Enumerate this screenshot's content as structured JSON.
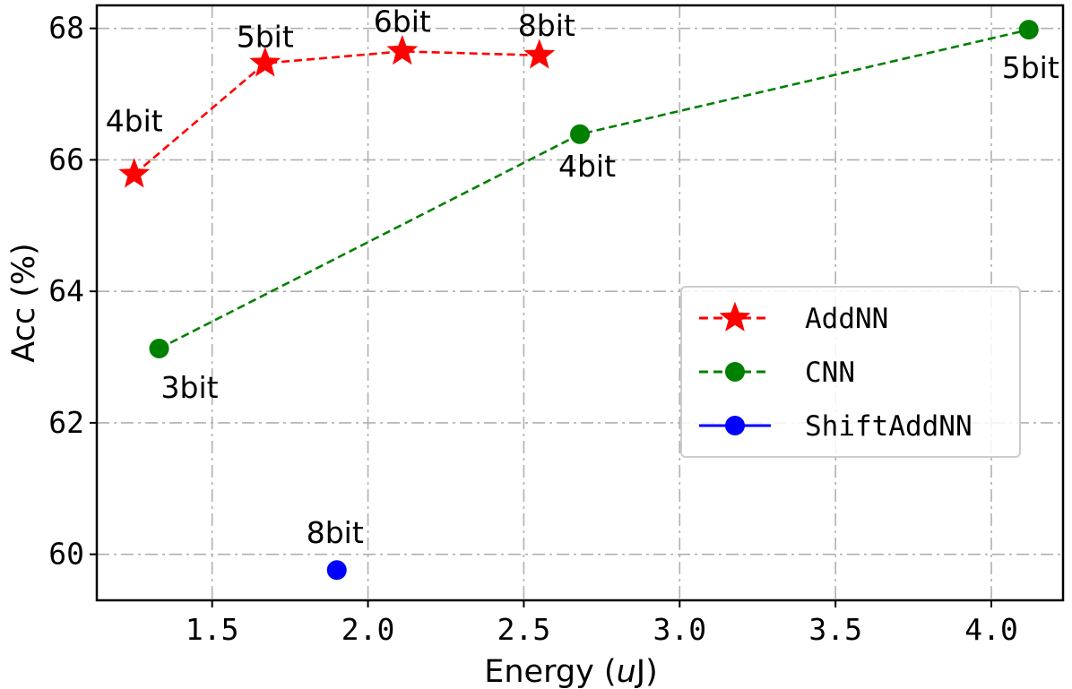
{
  "chart_data": {
    "type": "line",
    "title": "",
    "xlabel_prefix": "Energy (",
    "xlabel_unit": "u",
    "xlabel_suffix": "J)",
    "ylabel": "Acc (%)",
    "xlim": [
      1.13,
      4.23
    ],
    "ylim": [
      59.3,
      68.35
    ],
    "xticks": [
      1.5,
      2.0,
      2.5,
      3.0,
      3.5,
      4.0
    ],
    "xtick_labels": [
      "1.5",
      "2.0",
      "2.5",
      "3.0",
      "3.5",
      "4.0"
    ],
    "yticks": [
      60,
      62,
      64,
      66,
      68
    ],
    "ytick_labels": [
      "60",
      "62",
      "64",
      "66",
      "68"
    ],
    "grid": true,
    "legend_position": "center-right",
    "series": [
      {
        "name": "AddNN",
        "color": "#ff0000",
        "marker": "star",
        "linestyle": "dashed",
        "points": [
          {
            "x": 1.25,
            "y": 65.78,
            "label": "4bit"
          },
          {
            "x": 1.67,
            "y": 67.47,
            "label": "5bit"
          },
          {
            "x": 2.11,
            "y": 67.65,
            "label": "6bit"
          },
          {
            "x": 2.55,
            "y": 67.59,
            "label": "8bit"
          }
        ]
      },
      {
        "name": "CNN",
        "color": "#008000",
        "marker": "circle",
        "linestyle": "dashed",
        "points": [
          {
            "x": 1.33,
            "y": 63.13,
            "label": "3bit"
          },
          {
            "x": 2.68,
            "y": 66.39,
            "label": "4bit"
          },
          {
            "x": 4.12,
            "y": 67.98,
            "label": "5bit"
          }
        ]
      },
      {
        "name": "ShiftAddNN",
        "color": "#0000ff",
        "marker": "circle",
        "linestyle": "solid",
        "points": [
          {
            "x": 1.9,
            "y": 59.76,
            "label": "8bit"
          }
        ]
      }
    ]
  }
}
